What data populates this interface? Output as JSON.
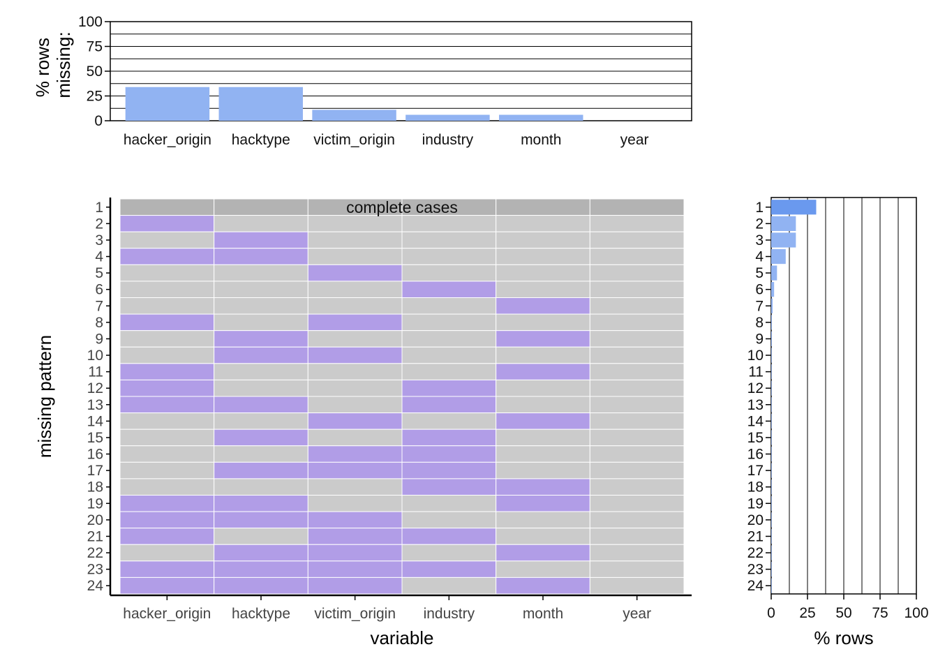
{
  "colors": {
    "bar": "#91b3f2",
    "bar_highlight": "#6a99ee",
    "missing": "#b19de7",
    "present": "#cbcbcb",
    "complete": "#b3b3b3",
    "grid": "#000000"
  },
  "chart_data": [
    {
      "type": "bar",
      "panel": "top",
      "categories": [
        "hacker_origin",
        "hacktype",
        "victim_origin",
        "industry",
        "month",
        "year"
      ],
      "values": [
        34,
        34,
        11,
        6,
        6,
        0
      ],
      "ylabel": "% rows\nmissing:",
      "ylabel_lines": [
        "% rows",
        "missing:"
      ],
      "ylim": [
        0,
        100
      ],
      "yticks": [
        "100",
        "75",
        "50",
        "25",
        "0"
      ],
      "grid": true
    },
    {
      "type": "heatmap",
      "panel": "main",
      "xlabel": "variable",
      "ylabel": "missing pattern",
      "variables": [
        "hacker_origin",
        "hacktype",
        "victim_origin",
        "industry",
        "month",
        "year"
      ],
      "pattern_labels": [
        "1",
        "2",
        "3",
        "4",
        "5",
        "6",
        "7",
        "8",
        "9",
        "10",
        "11",
        "12",
        "13",
        "14",
        "15",
        "16",
        "17",
        "18",
        "19",
        "20",
        "21",
        "22",
        "23",
        "24"
      ],
      "complete_label": "complete cases",
      "patterns": [
        [
          0,
          0,
          0,
          0,
          0,
          0
        ],
        [
          1,
          0,
          0,
          0,
          0,
          0
        ],
        [
          0,
          1,
          0,
          0,
          0,
          0
        ],
        [
          1,
          1,
          0,
          0,
          0,
          0
        ],
        [
          0,
          0,
          1,
          0,
          0,
          0
        ],
        [
          0,
          0,
          0,
          1,
          0,
          0
        ],
        [
          0,
          0,
          0,
          0,
          1,
          0
        ],
        [
          1,
          0,
          1,
          0,
          0,
          0
        ],
        [
          0,
          1,
          0,
          0,
          1,
          0
        ],
        [
          0,
          1,
          1,
          0,
          0,
          0
        ],
        [
          1,
          0,
          0,
          0,
          1,
          0
        ],
        [
          1,
          0,
          0,
          1,
          0,
          0
        ],
        [
          1,
          1,
          0,
          1,
          0,
          0
        ],
        [
          0,
          0,
          1,
          0,
          1,
          0
        ],
        [
          0,
          1,
          0,
          1,
          0,
          0
        ],
        [
          0,
          0,
          1,
          1,
          0,
          0
        ],
        [
          0,
          1,
          1,
          1,
          0,
          0
        ],
        [
          0,
          0,
          0,
          1,
          1,
          0
        ],
        [
          1,
          1,
          0,
          0,
          1,
          0
        ],
        [
          1,
          1,
          1,
          0,
          0,
          0
        ],
        [
          1,
          0,
          1,
          1,
          0,
          0
        ],
        [
          0,
          1,
          1,
          0,
          1,
          0
        ],
        [
          1,
          1,
          1,
          1,
          0,
          0
        ],
        [
          1,
          1,
          1,
          0,
          1,
          0
        ]
      ]
    },
    {
      "type": "bar",
      "panel": "right",
      "orientation": "horizontal",
      "categories": [
        "1",
        "2",
        "3",
        "4",
        "5",
        "6",
        "7",
        "8",
        "9",
        "10",
        "11",
        "12",
        "13",
        "14",
        "15",
        "16",
        "17",
        "18",
        "19",
        "20",
        "21",
        "22",
        "23",
        "24"
      ],
      "values": [
        31,
        17,
        17,
        10,
        4,
        2,
        1,
        0.5,
        0.5,
        0.3,
        0.3,
        0.2,
        0.2,
        0.2,
        0.1,
        0.1,
        0.1,
        0.1,
        0.1,
        0.1,
        0.1,
        0.1,
        0.1,
        0.1
      ],
      "xlabel": "% rows",
      "xlim": [
        0,
        100
      ],
      "xticks": [
        "0",
        "25",
        "50",
        "75",
        "100"
      ],
      "grid": true
    }
  ]
}
